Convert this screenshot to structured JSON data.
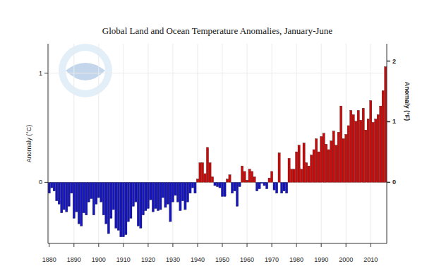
{
  "chart_data": {
    "type": "bar",
    "title": "Global Land and Ocean Temperature Anomalies, January-June",
    "ylabel": "Anomaly (°C)",
    "y2label": "Anomaly (°F)",
    "x": [
      1880,
      1881,
      1882,
      1883,
      1884,
      1885,
      1886,
      1887,
      1888,
      1889,
      1890,
      1891,
      1892,
      1893,
      1894,
      1895,
      1896,
      1897,
      1898,
      1899,
      1900,
      1901,
      1902,
      1903,
      1904,
      1905,
      1906,
      1907,
      1908,
      1909,
      1910,
      1911,
      1912,
      1913,
      1914,
      1915,
      1916,
      1917,
      1918,
      1919,
      1920,
      1921,
      1922,
      1923,
      1924,
      1925,
      1926,
      1927,
      1928,
      1929,
      1930,
      1931,
      1932,
      1933,
      1934,
      1935,
      1936,
      1937,
      1938,
      1939,
      1940,
      1941,
      1942,
      1943,
      1944,
      1945,
      1946,
      1947,
      1948,
      1949,
      1950,
      1951,
      1952,
      1953,
      1954,
      1955,
      1956,
      1957,
      1958,
      1959,
      1960,
      1961,
      1962,
      1963,
      1964,
      1965,
      1966,
      1967,
      1968,
      1969,
      1970,
      1971,
      1972,
      1973,
      1974,
      1975,
      1976,
      1977,
      1978,
      1979,
      1980,
      1981,
      1982,
      1983,
      1984,
      1985,
      1986,
      1987,
      1988,
      1989,
      1990,
      1991,
      1992,
      1993,
      1994,
      1995,
      1996,
      1997,
      1998,
      1999,
      2000,
      2001,
      2002,
      2003,
      2004,
      2005,
      2006,
      2007,
      2008,
      2009,
      2010,
      2011,
      2012,
      2013,
      2014,
      2015,
      2016
    ],
    "values": [
      -0.1,
      -0.05,
      -0.08,
      -0.17,
      -0.2,
      -0.28,
      -0.25,
      -0.27,
      -0.22,
      -0.1,
      -0.33,
      -0.27,
      -0.38,
      -0.4,
      -0.28,
      -0.3,
      -0.18,
      -0.15,
      -0.3,
      -0.2,
      -0.14,
      -0.18,
      -0.3,
      -0.38,
      -0.47,
      -0.33,
      -0.25,
      -0.42,
      -0.44,
      -0.5,
      -0.5,
      -0.48,
      -0.36,
      -0.33,
      -0.22,
      -0.18,
      -0.4,
      -0.42,
      -0.3,
      -0.26,
      -0.24,
      -0.16,
      -0.27,
      -0.24,
      -0.26,
      -0.25,
      -0.14,
      -0.23,
      -0.2,
      -0.36,
      -0.18,
      -0.12,
      -0.18,
      -0.26,
      -0.17,
      -0.25,
      -0.18,
      -0.1,
      -0.05,
      -0.1,
      0.03,
      0.18,
      0.18,
      0.08,
      0.32,
      0.18,
      0.05,
      -0.03,
      -0.04,
      -0.05,
      -0.13,
      -0.13,
      0.03,
      0.07,
      -0.1,
      -0.08,
      -0.22,
      -0.04,
      0.15,
      0.1,
      0.02,
      0.12,
      0.1,
      0.05,
      -0.08,
      -0.06,
      -0.01,
      -0.03,
      -0.06,
      0.04,
      0.1,
      -0.07,
      -0.1,
      0.27,
      -0.1,
      -0.08,
      -0.1,
      0.22,
      0.12,
      0.12,
      0.28,
      0.34,
      0.12,
      0.36,
      0.18,
      0.15,
      0.25,
      0.3,
      0.4,
      0.28,
      0.42,
      0.45,
      0.35,
      0.3,
      0.38,
      0.47,
      0.34,
      0.46,
      0.7,
      0.4,
      0.44,
      0.52,
      0.66,
      0.62,
      0.56,
      0.66,
      0.57,
      0.68,
      0.48,
      0.58,
      0.75,
      0.55,
      0.58,
      0.62,
      0.7,
      0.84,
      1.06
    ],
    "colors": [
      "#1515c4",
      "#1515c4",
      "#1515c4",
      "#1515c4",
      "#1515c4",
      "#1515c4",
      "#1515c4",
      "#1515c4",
      "#1515c4",
      "#1515c4",
      "#1515c4",
      "#1515c4",
      "#1515c4",
      "#1515c4",
      "#1515c4",
      "#1515c4",
      "#1515c4",
      "#1515c4",
      "#1515c4",
      "#1515c4",
      "#1515c4",
      "#1515c4",
      "#1515c4",
      "#1515c4",
      "#1515c4",
      "#1515c4",
      "#1515c4",
      "#1515c4",
      "#1515c4",
      "#1515c4",
      "#1515c4",
      "#1515c4",
      "#1515c4",
      "#1515c4",
      "#1515c4",
      "#1515c4",
      "#1515c4",
      "#1515c4",
      "#1515c4",
      "#1515c4",
      "#1515c4",
      "#1515c4",
      "#1515c4",
      "#1515c4",
      "#1515c4",
      "#1515c4",
      "#1515c4",
      "#1515c4",
      "#1515c4",
      "#1515c4",
      "#1515c4",
      "#1515c4",
      "#1515c4",
      "#1515c4",
      "#1515c4",
      "#1515c4",
      "#1515c4",
      "#1515c4",
      "#1515c4",
      "#1515c4",
      "#cc0a0a",
      "#cc0a0a",
      "#cc0a0a",
      "#cc0a0a",
      "#cc0a0a",
      "#cc0a0a",
      "#cc0a0a",
      "#1515c4",
      "#1515c4",
      "#1515c4",
      "#1515c4",
      "#1515c4",
      "#cc0a0a",
      "#cc0a0a",
      "#1515c4",
      "#1515c4",
      "#1515c4",
      "#1515c4",
      "#cc0a0a",
      "#cc0a0a",
      "#cc0a0a",
      "#cc0a0a",
      "#cc0a0a",
      "#cc0a0a",
      "#1515c4",
      "#1515c4",
      "#1515c4",
      "#1515c4",
      "#1515c4",
      "#cc0a0a",
      "#cc0a0a",
      "#1515c4",
      "#1515c4",
      "#cc0a0a",
      "#1515c4",
      "#1515c4",
      "#1515c4",
      "#cc0a0a",
      "#cc0a0a",
      "#cc0a0a",
      "#cc0a0a",
      "#cc0a0a",
      "#cc0a0a",
      "#cc0a0a",
      "#cc0a0a",
      "#cc0a0a",
      "#cc0a0a",
      "#cc0a0a",
      "#cc0a0a",
      "#cc0a0a",
      "#cc0a0a",
      "#cc0a0a",
      "#cc0a0a",
      "#cc0a0a",
      "#cc0a0a",
      "#cc0a0a",
      "#cc0a0a",
      "#cc0a0a",
      "#cc0a0a",
      "#cc0a0a",
      "#cc0a0a",
      "#cc0a0a",
      "#cc0a0a",
      "#cc0a0a",
      "#cc0a0a",
      "#cc0a0a",
      "#cc0a0a",
      "#cc0a0a",
      "#cc0a0a",
      "#cc0a0a",
      "#cc0a0a",
      "#cc0a0a",
      "#cc0a0a",
      "#cc0a0a",
      "#cc0a0a",
      "#cc0a0a",
      "#cc0a0a"
    ],
    "xlim": [
      1879.5,
      2016.5
    ],
    "xticks": [
      1880,
      1890,
      1900,
      1910,
      1920,
      1930,
      1940,
      1950,
      1960,
      1970,
      1980,
      1990,
      2000,
      2010
    ],
    "ylim": [
      -0.56,
      1.27
    ],
    "yticks": [
      0,
      1
    ],
    "y2lim": [
      -1.008,
      2.286
    ],
    "y2ticks": [
      0,
      1,
      2
    ],
    "grid": true
  }
}
